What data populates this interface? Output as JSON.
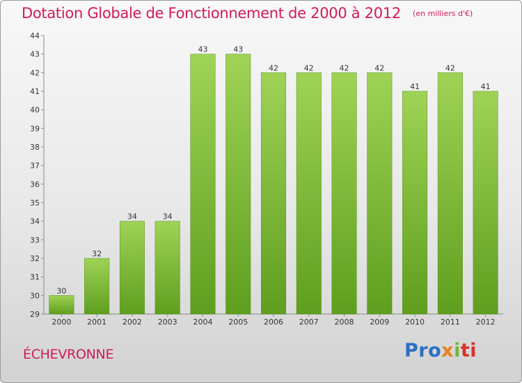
{
  "header": {
    "title": "Dotation Globale de Fonctionnement de 2000 à 2012",
    "subtitle": "(en milliers d'€)"
  },
  "footer": {
    "commune": "ÉCHEVRONNE",
    "logo": [
      "Pro",
      "x",
      "i",
      "ti"
    ]
  },
  "colors": {
    "title": "#d11a5b",
    "bar_top": "#9fd356",
    "bar_bottom": "#5f9e1e"
  },
  "chart_data": {
    "type": "bar",
    "title": "Dotation Globale de Fonctionnement de 2000 à 2012",
    "subtitle": "(en milliers d'€)",
    "categories": [
      "2000",
      "2001",
      "2002",
      "2003",
      "2004",
      "2005",
      "2006",
      "2007",
      "2008",
      "2009",
      "2010",
      "2011",
      "2012"
    ],
    "values": [
      30,
      32,
      34,
      34,
      43,
      43,
      42,
      42,
      42,
      42,
      41,
      42,
      41
    ],
    "data_labels": [
      "30",
      "32",
      "34",
      "34",
      "43",
      "43",
      "42",
      "42",
      "42",
      "42",
      "41",
      "42",
      "41"
    ],
    "y_ticks": [
      "29",
      "30",
      "31",
      "32",
      "33",
      "34",
      "35",
      "36",
      "37",
      "38",
      "39",
      "40",
      "41",
      "42",
      "43",
      "44"
    ],
    "ylim": [
      29,
      44
    ],
    "xlabel": "",
    "ylabel": "",
    "grid": false,
    "legend": "none"
  }
}
